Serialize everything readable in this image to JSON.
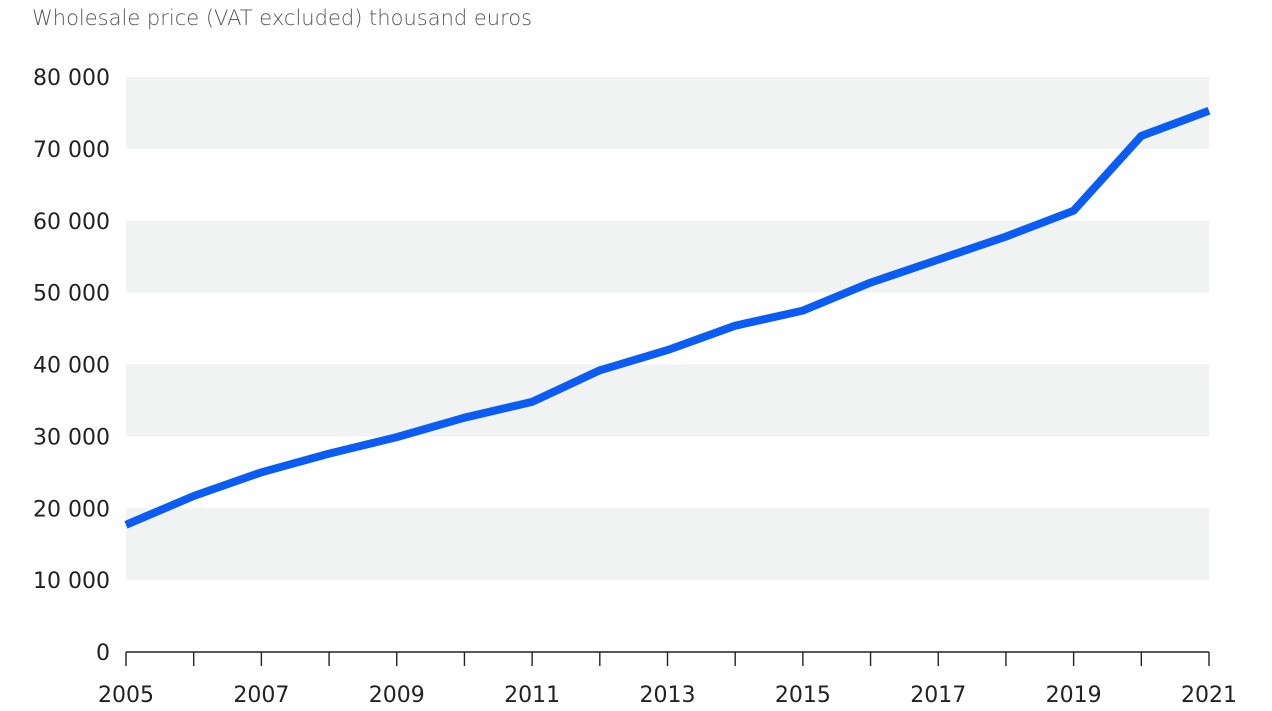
{
  "chart_data": {
    "type": "line",
    "title": "Wholesale price (VAT excluded) thousand euros",
    "xlabel": "",
    "ylabel": "",
    "x": [
      2005,
      2006,
      2007,
      2008,
      2009,
      2010,
      2011,
      2012,
      2013,
      2014,
      2015,
      2016,
      2017,
      2018,
      2019,
      2020,
      2021
    ],
    "series": [
      {
        "values": [
          17700,
          21700,
          25000,
          27600,
          29900,
          32600,
          34800,
          39200,
          42000,
          45400,
          47500,
          51400,
          54600,
          57800,
          61400,
          71800,
          75300
        ]
      }
    ],
    "ylim": [
      0,
      80000
    ],
    "yticks": [
      0,
      10000,
      20000,
      30000,
      40000,
      50000,
      60000,
      70000,
      80000
    ],
    "ytick_labels": [
      "0",
      "10 000",
      "20 000",
      "30 000",
      "40 000",
      "50 000",
      "60 000",
      "70 000",
      "80 000"
    ],
    "xlim": [
      2005,
      2021
    ],
    "xtick_labels": [
      "2005",
      "2007",
      "2009",
      "2011",
      "2013",
      "2015",
      "2017",
      "2019",
      "2021"
    ],
    "grid": "alternating horizontal bands",
    "legend": "none",
    "colors": {
      "line": "#0a5cf5",
      "band": "#f1f2f2"
    }
  }
}
